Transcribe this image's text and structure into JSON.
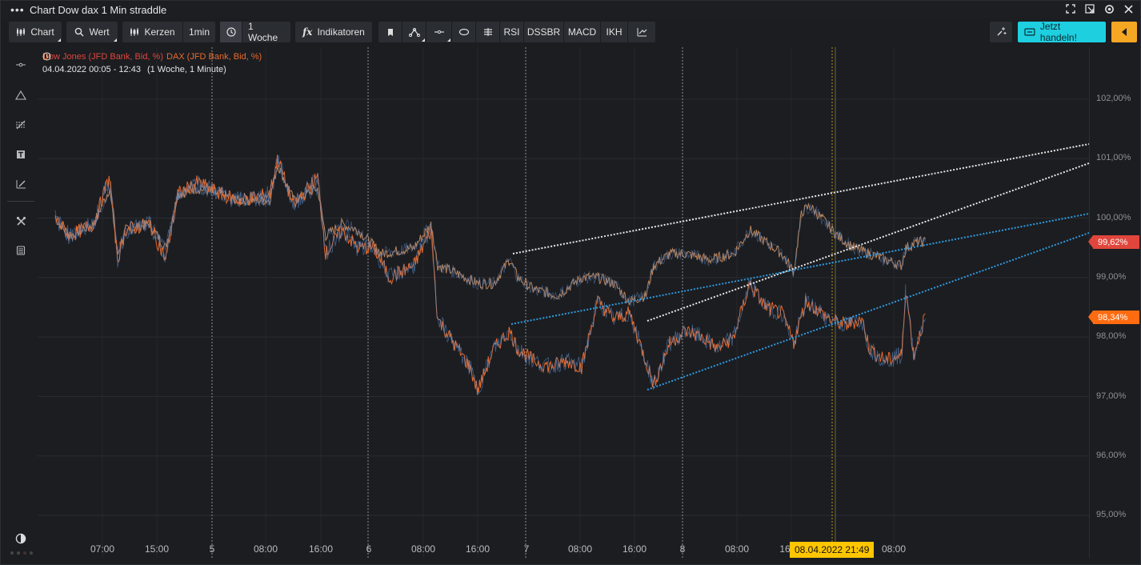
{
  "window": {
    "title": "Chart Dow dax 1 Min straddle"
  },
  "toolbar": {
    "chart_label": "Chart",
    "wert_label": "Wert",
    "kerzen_label": "Kerzen",
    "interval_label": "1min",
    "period_label": "1 Woche",
    "indicators_label": "Indikatoren",
    "rsi_label": "RSI",
    "dssbr_label": "DSSBR",
    "macd_label": "MACD",
    "ikh_label": "IKH",
    "trade_label": "Jetzt handeln!"
  },
  "legend": {
    "series1": "Dow Jones (JFD Bank, Bid, %)",
    "series2": "DAX (JFD Bank, Bid, %)",
    "range": "04.04.2022 00:05 - 12:43",
    "range_detail": "(1 Woche, 1 Minute)"
  },
  "colors": {
    "dow": "#e0463c",
    "dax": "#ea6a2a",
    "accent": "#1ecfe0",
    "cursor": "#ffc600",
    "trend_white": "#e8e8e8",
    "trend_blue": "#2f9be0"
  },
  "yaxis": {
    "ticks": [
      "102,00%",
      "101,00%",
      "100,00%",
      "99,00%",
      "98,00%",
      "97,00%",
      "96,00%",
      "95,00%"
    ],
    "badge_dow": "99,62%",
    "badge_dax": "98,34%"
  },
  "xaxis": {
    "ticks": [
      "07:00",
      "15:00",
      "5",
      "08:00",
      "16:00",
      "6",
      "08:00",
      "16:00",
      "7",
      "08:00",
      "16:00",
      "8",
      "08:00",
      "16",
      "08:00"
    ],
    "cursor_label": "08.04.2022 21:49"
  },
  "chart_data": {
    "type": "line",
    "ylim": [
      94.5,
      103.0
    ],
    "y_unit": "%",
    "series": [
      {
        "name": "Dow Jones (JFD Bank, Bid, %)",
        "last": 99.62
      },
      {
        "name": "DAX (JFD Bank, Bid, %)",
        "last": 98.34
      }
    ]
  },
  "icons": {
    "sidebar": [
      "crosshair-icon",
      "triangle-icon",
      "fib-icon",
      "text-icon",
      "pen-icon",
      "tools-icon",
      "layers-icon",
      "contrast-icon"
    ]
  }
}
